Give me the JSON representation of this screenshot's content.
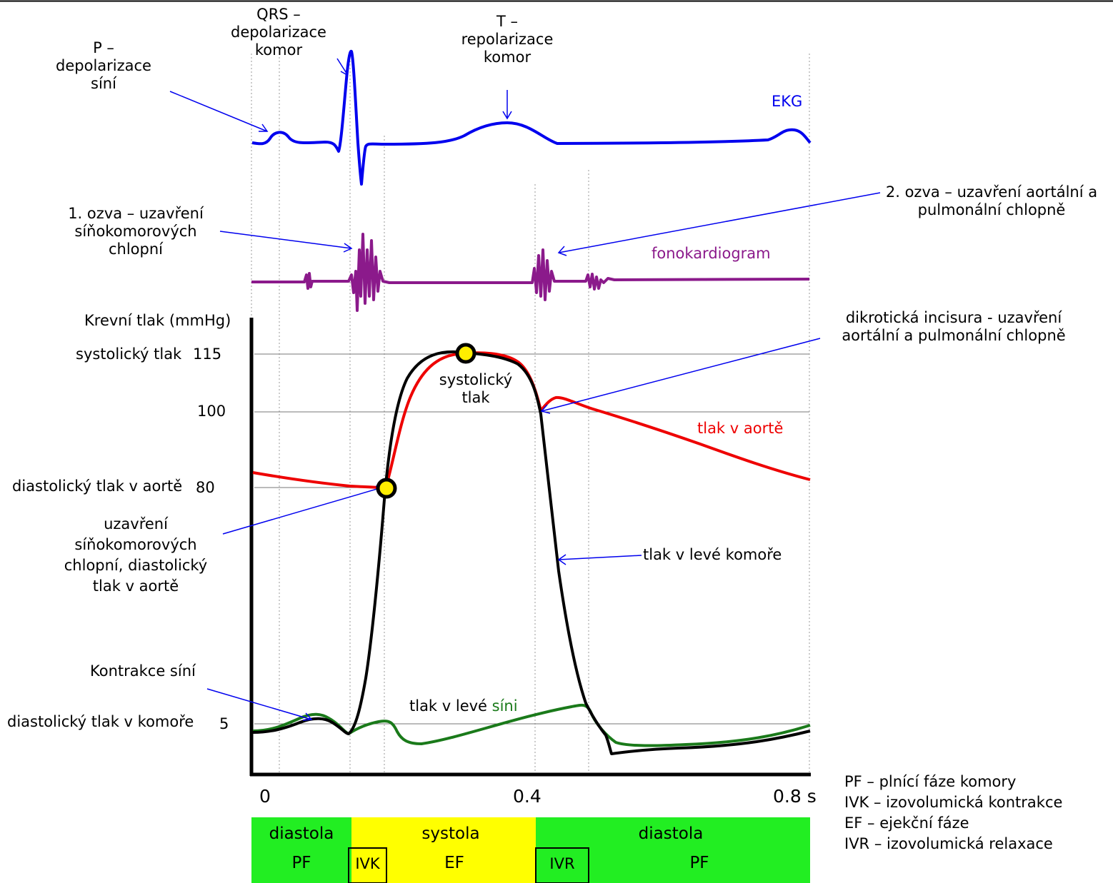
{
  "labels": {
    "p_wave": [
      "P –",
      "depolarizace",
      "síní"
    ],
    "qrs": [
      "QRS –",
      "depolarizace",
      "komor"
    ],
    "t_wave": [
      "T –",
      "repolarizace",
      "komor"
    ],
    "ekg": "EKG",
    "sound1": [
      "1. ozva – uzavření",
      "síňokomorových",
      "chlopní"
    ],
    "sound2": [
      "2. ozva – uzavření aortální a",
      "pulmonální chlopně"
    ],
    "phonocardiogram": "fonokardiogram",
    "y_axis": "Krevní tlak (mmHg)",
    "systolic_pressure": "systolický tlak",
    "tick_115": "115",
    "tick_100": "100",
    "diastolic_aorta": "diastolický tlak v aortě",
    "tick_80": "80",
    "diastolic_ventricle": "diastolický tlak v komoře",
    "tick_5": "5",
    "systolic_point": [
      "systolický",
      "tlak"
    ],
    "dicrotic": [
      "dikrotická incisura - uzavření",
      "aortální a pulmonální chlopně"
    ],
    "aorta_pressure": "tlak v aortě",
    "av_closure": [
      "uzavření",
      "síňokomorových",
      "chlopní, diastolický",
      "tlak v aortě"
    ],
    "lv_pressure": "tlak v levé komoře",
    "atrial_contraction": "Kontrakce síní",
    "la_pressure_1": "tlak v levé ",
    "la_pressure_2": "síni",
    "x_0": "0",
    "x_04": "0.4",
    "x_08": "0.8 s"
  },
  "phases": {
    "diastola_1": "diastola",
    "pf_1": "PF",
    "ivk": "IVK",
    "systola": "systola",
    "ef": "EF",
    "ivr": "IVR",
    "diastola_2": "diastola",
    "pf_2": "PF"
  },
  "legend": [
    "PF – plnící fáze komory",
    "IVK – izovolumická kontrakce",
    "EF – ejekční fáze",
    "IVR – izovolumická relaxace"
  ],
  "colors": {
    "ekg": "#0000ee",
    "phono": "#8b1a8b",
    "aorta": "#ee0000",
    "ventricle": "#000000",
    "atrium": "#1a7a1a",
    "diastole_bg": "#22ee22",
    "systole_bg": "#ffff00",
    "marker": "#ffee00"
  }
}
